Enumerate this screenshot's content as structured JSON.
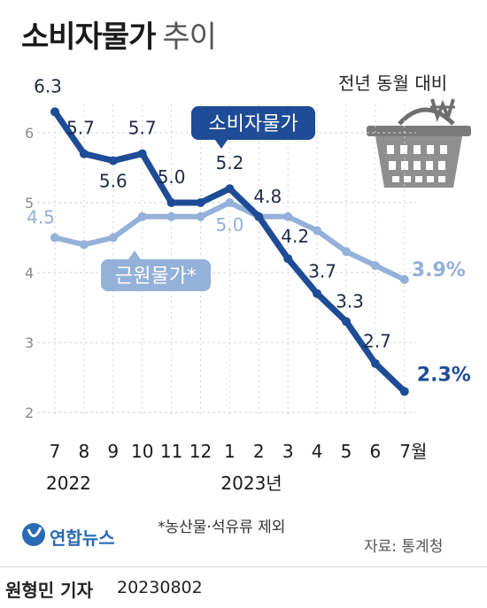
{
  "title": "소비자물가",
  "title_suffix": "추이",
  "subtitle": "전년 동월 대비",
  "footnote": "*농산물·석유류 제외",
  "source": "자료: 통계청",
  "agency": "연합뉴스",
  "byline": "원형민 기자",
  "date": "20230802",
  "colors": {
    "cpi": "#1e4c96",
    "core": "#93b1d9",
    "grid": "#cfd4da",
    "text": "#1a1a1a"
  },
  "icons": [
    "shopping-basket-icon",
    "won-sign-icon",
    "yonhap-logo-icon"
  ],
  "chart_data": {
    "type": "line",
    "x": [
      "7",
      "8",
      "9",
      "10",
      "11",
      "12",
      "1",
      "2",
      "3",
      "4",
      "5",
      "6",
      "7월"
    ],
    "year_labels": [
      {
        "label": "2022",
        "at": 0
      },
      {
        "label": "2023년",
        "at": 6
      }
    ],
    "ylim": [
      2,
      6.5
    ],
    "yticks": [
      2,
      3,
      4,
      5,
      6
    ],
    "series": [
      {
        "name": "소비자물가",
        "color": "#1e4c96",
        "values": [
          6.3,
          5.7,
          5.6,
          5.7,
          5.0,
          5.0,
          5.2,
          4.8,
          4.2,
          3.7,
          3.3,
          2.7,
          2.3
        ],
        "data_labels": [
          "6.3",
          "5.7",
          "5.6",
          "5.7",
          "5.0",
          "",
          "5.2",
          "4.8",
          "4.2",
          "3.7",
          "3.3",
          "2.7",
          "2.3%"
        ]
      },
      {
        "name": "근원물가*",
        "color": "#93b1d9",
        "values": [
          4.5,
          4.4,
          4.5,
          4.8,
          4.8,
          4.8,
          5.0,
          4.8,
          4.8,
          4.6,
          4.3,
          4.1,
          3.9
        ],
        "data_labels": [
          "4.5",
          "",
          "",
          "",
          "",
          "",
          "5.0",
          "",
          "",
          "",
          "",
          "",
          "3.9%"
        ]
      }
    ]
  }
}
